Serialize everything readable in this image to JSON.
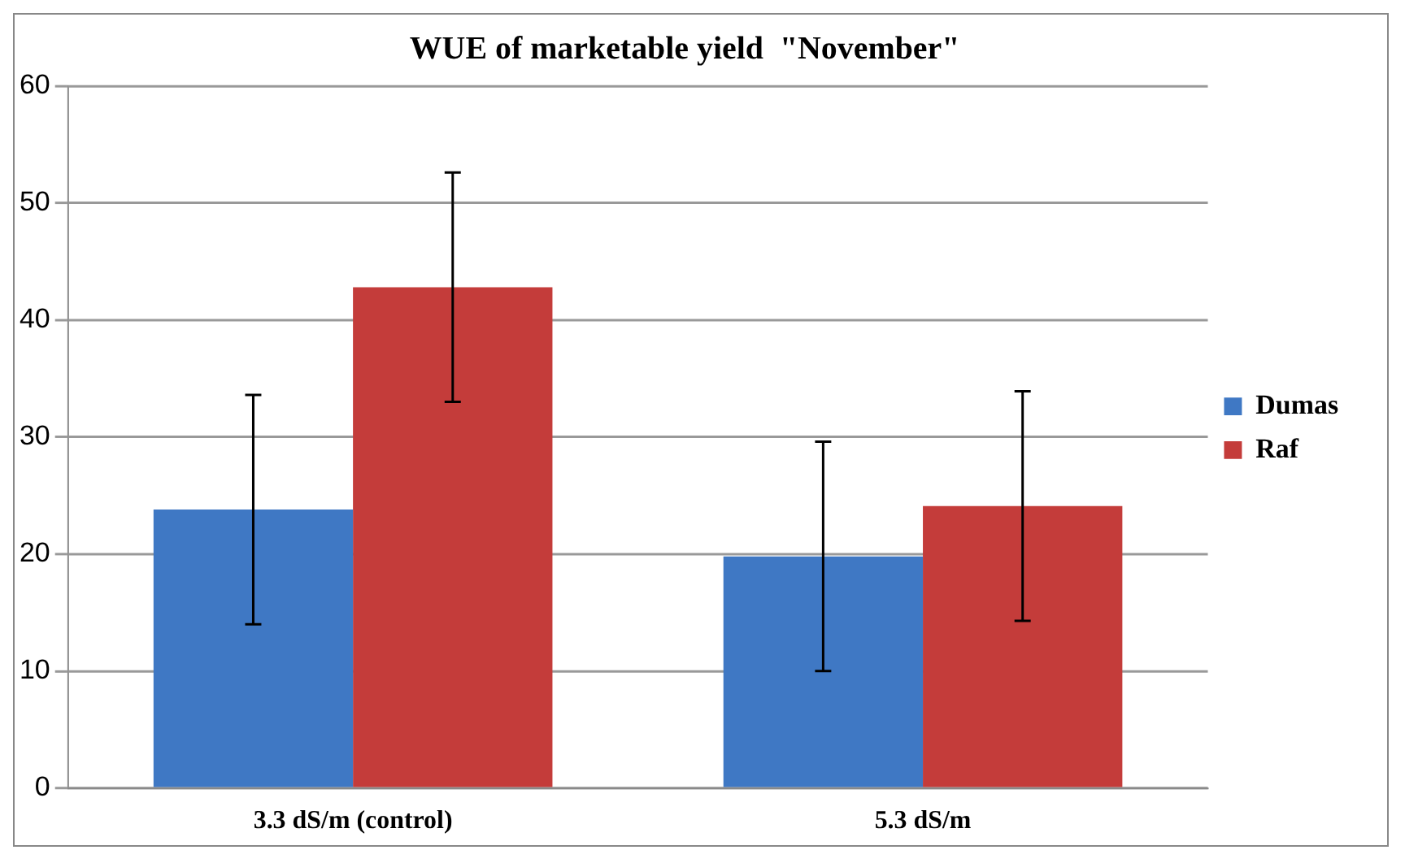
{
  "chart_data": {
    "type": "bar",
    "title": "WUE of marketable yield  \"November\"",
    "categories": [
      "3.3 dS/m (control)",
      "5.3 dS/m"
    ],
    "series": [
      {
        "name": "Dumas",
        "color": "#3f78c4",
        "values": [
          23.8,
          19.8
        ],
        "errors": [
          9.8,
          9.8
        ]
      },
      {
        "name": "Raf",
        "color": "#c43c3a",
        "values": [
          42.8,
          24.1
        ],
        "errors": [
          9.8,
          9.8
        ]
      }
    ],
    "ylim": [
      0,
      60
    ],
    "yticks": [
      0,
      10,
      20,
      30,
      40,
      50,
      60
    ],
    "grid": "y",
    "legend": "right"
  }
}
